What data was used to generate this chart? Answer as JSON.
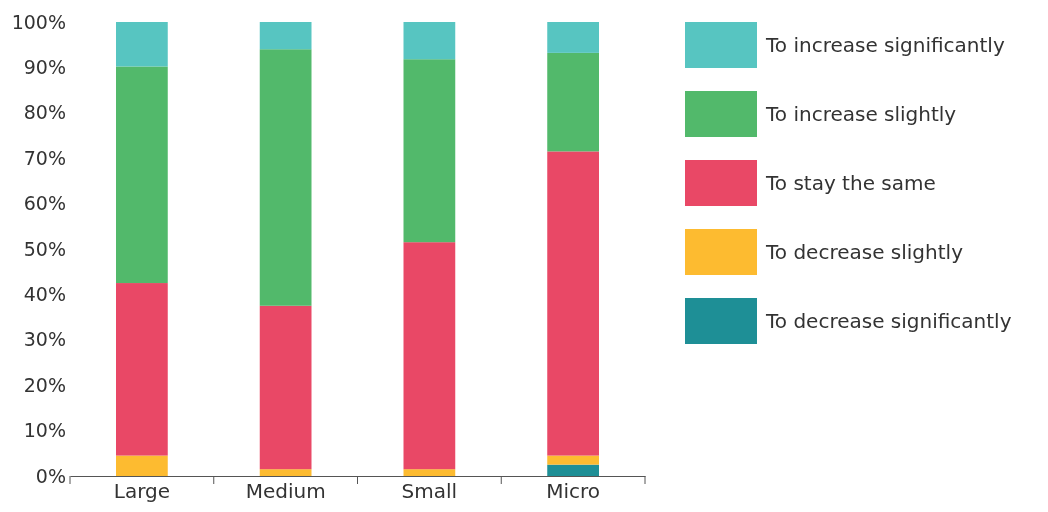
{
  "chart_data": {
    "type": "bar",
    "stacked": true,
    "categories": [
      "Large",
      "Medium",
      "Small",
      "Micro"
    ],
    "series": [
      {
        "name": "To decrease significantly",
        "color": "#1e8f96",
        "values": [
          0,
          0,
          0,
          2.5
        ]
      },
      {
        "name": "To decrease slightly",
        "color": "#fdbb30",
        "values": [
          4.5,
          1.5,
          1.5,
          2
        ]
      },
      {
        "name": "To stay the same",
        "color": "#e94866",
        "values": [
          38,
          36,
          50,
          67
        ]
      },
      {
        "name": "To increase slightly",
        "color": "#52b96b",
        "values": [
          47.7,
          56.5,
          40.3,
          21.7
        ]
      },
      {
        "name": "To increase significantly",
        "color": "#57c5c1",
        "values": [
          9.8,
          6,
          8.2,
          6.8
        ]
      }
    ],
    "ylim": [
      0,
      100
    ],
    "yticks": [
      {
        "value": 0,
        "label": "0%"
      },
      {
        "value": 10,
        "label": "10%"
      },
      {
        "value": 20,
        "label": "20%"
      },
      {
        "value": 30,
        "label": "30%"
      },
      {
        "value": 40,
        "label": "40%"
      },
      {
        "value": 50,
        "label": "50%"
      },
      {
        "value": 60,
        "label": "60%"
      },
      {
        "value": 70,
        "label": "70%"
      },
      {
        "value": 80,
        "label": "80%"
      },
      {
        "value": 90,
        "label": "90%"
      },
      {
        "value": 100,
        "label": "100%"
      }
    ],
    "legend": "right",
    "grid": false
  }
}
